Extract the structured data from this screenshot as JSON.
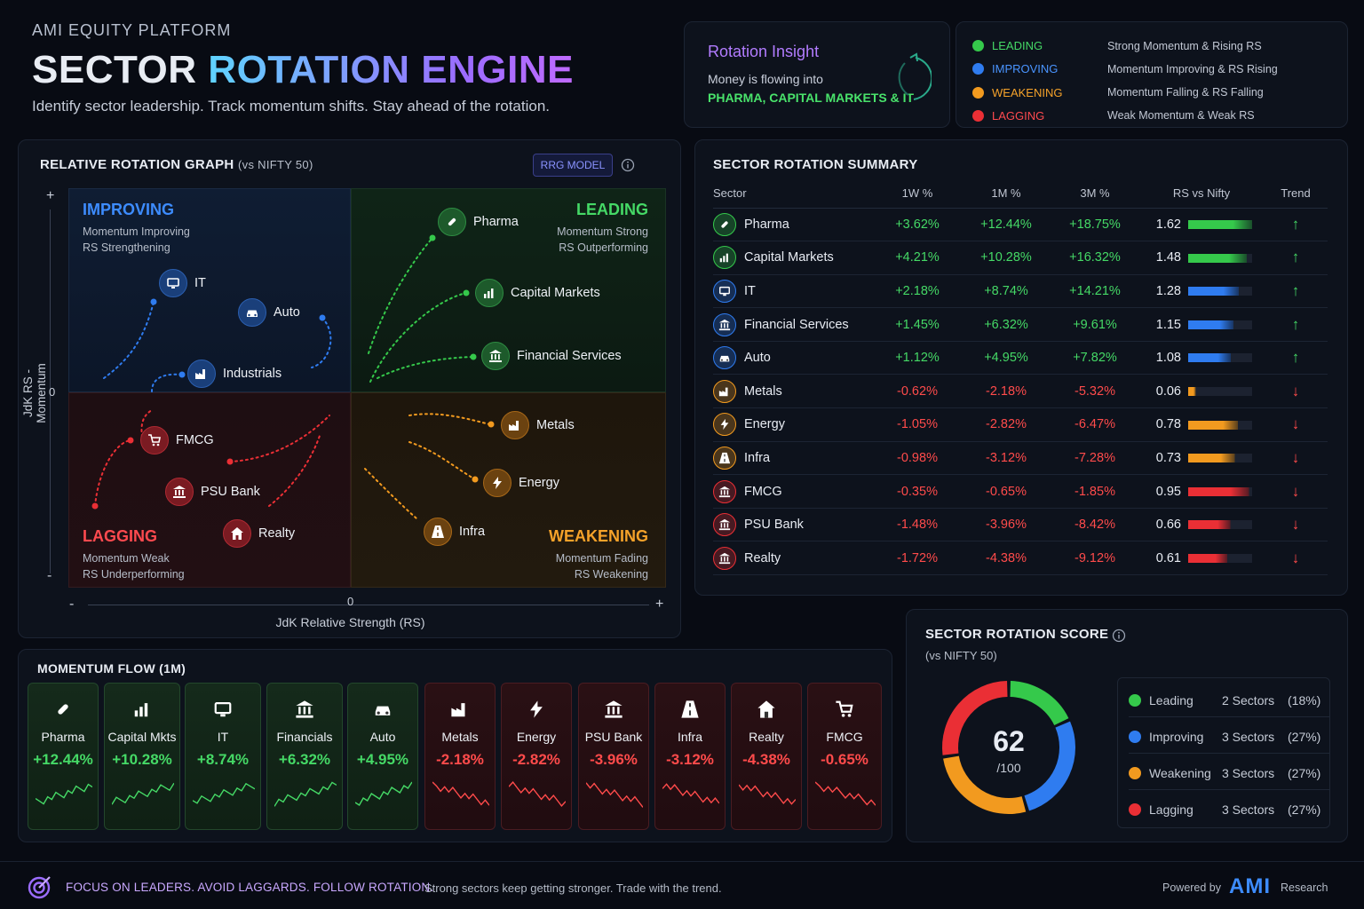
{
  "header": {
    "brand": "AMI EQUITY PLATFORM",
    "title_a": "SECTOR",
    "title_b": "ROTATION ENGINE",
    "subtitle": "Identify sector leadership. Track momentum shifts. Stay ahead of the rotation."
  },
  "insight": {
    "title": "Rotation Insight",
    "line1": "Money is flowing into",
    "line2": "PHARMA, CAPITAL MARKETS & IT"
  },
  "legend": [
    {
      "label": "LEADING",
      "desc": "Strong Momentum & Rising RS",
      "color": "#35c94b"
    },
    {
      "label": "IMPROVING",
      "desc": "Momentum Improving & RS Rising",
      "color": "#2f7cf0"
    },
    {
      "label": "WEAKENING",
      "desc": "Momentum Falling & RS Falling",
      "color": "#f29a1f"
    },
    {
      "label": "LAGGING",
      "desc": "Weak Momentum & Weak RS",
      "color": "#ea2f35"
    }
  ],
  "rrg": {
    "title": "RELATIVE ROTATION GRAPH",
    "title_sub": "(vs NIFTY 50)",
    "model_btn": "RRG MODEL",
    "y_label": "JdK RS - Momentum",
    "x_label": "JdK Relative Strength (RS)",
    "plus": "+",
    "minus": "-",
    "zero": "0",
    "quadrants": {
      "improving": {
        "label": "IMPROVING",
        "d1": "Momentum Improving",
        "d2": "RS Strengthening"
      },
      "leading": {
        "label": "LEADING",
        "d1": "Momentum Strong",
        "d2": "RS Outperforming"
      },
      "lagging": {
        "label": "LAGGING",
        "d1": "Momentum Weak",
        "d2": "RS Underperforming"
      },
      "weakening": {
        "label": "WEAKENING",
        "d1": "Momentum Fading",
        "d2": "RS Weakening"
      }
    },
    "nodes": {
      "pharma": "Pharma",
      "capmkts": "Capital Markets",
      "finserv": "Financial Services",
      "it": "IT",
      "auto": "Auto",
      "industrials": "Industrials",
      "fmcg": "FMCG",
      "psubank": "PSU Bank",
      "realty": "Realty",
      "metals": "Metals",
      "energy": "Energy",
      "infra": "Infra"
    }
  },
  "summary": {
    "title": "SECTOR ROTATION SUMMARY",
    "columns": [
      "Sector",
      "1W %",
      "1M %",
      "3M %",
      "RS vs Nifty",
      "Trend"
    ],
    "rows": [
      {
        "sector": "Pharma",
        "w1": "+3.62%",
        "m1": "+12.44%",
        "m3": "+18.75%",
        "rs": "1.62",
        "trend": "up",
        "color": "#35c94b",
        "icon": "pill-icon"
      },
      {
        "sector": "Capital Markets",
        "w1": "+4.21%",
        "m1": "+10.28%",
        "m3": "+16.32%",
        "rs": "1.48",
        "trend": "up",
        "color": "#35c94b",
        "icon": "chart-icon"
      },
      {
        "sector": "IT",
        "w1": "+2.18%",
        "m1": "+8.74%",
        "m3": "+14.21%",
        "rs": "1.28",
        "trend": "up",
        "color": "#2f7cf0",
        "icon": "monitor-icon"
      },
      {
        "sector": "Financial Services",
        "w1": "+1.45%",
        "m1": "+6.32%",
        "m3": "+9.61%",
        "rs": "1.15",
        "trend": "up",
        "color": "#2f7cf0",
        "icon": "bank-icon"
      },
      {
        "sector": "Auto",
        "w1": "+1.12%",
        "m1": "+4.95%",
        "m3": "+7.82%",
        "rs": "1.08",
        "trend": "up",
        "color": "#2f7cf0",
        "icon": "car-icon"
      },
      {
        "sector": "Metals",
        "w1": "-0.62%",
        "m1": "-2.18%",
        "m3": "-5.32%",
        "rs": "0.06",
        "trend": "down",
        "color": "#f29a1f",
        "icon": "factory-icon"
      },
      {
        "sector": "Energy",
        "w1": "-1.05%",
        "m1": "-2.82%",
        "m3": "-6.47%",
        "rs": "0.78",
        "trend": "down",
        "color": "#f29a1f",
        "icon": "bolt-icon"
      },
      {
        "sector": "Infra",
        "w1": "-0.98%",
        "m1": "-3.12%",
        "m3": "-7.28%",
        "rs": "0.73",
        "trend": "down",
        "color": "#f29a1f",
        "icon": "road-icon"
      },
      {
        "sector": "FMCG",
        "w1": "-0.35%",
        "m1": "-0.65%",
        "m3": "-1.85%",
        "rs": "0.95",
        "trend": "down",
        "color": "#ea2f35",
        "icon": "bank-icon"
      },
      {
        "sector": "PSU Bank",
        "w1": "-1.48%",
        "m1": "-3.96%",
        "m3": "-8.42%",
        "rs": "0.66",
        "trend": "down",
        "color": "#ea2f35",
        "icon": "bank-icon"
      },
      {
        "sector": "Realty",
        "w1": "-1.72%",
        "m1": "-4.38%",
        "m3": "-9.12%",
        "rs": "0.61",
        "trend": "down",
        "color": "#ea2f35",
        "icon": "bank-icon"
      }
    ]
  },
  "momentum": {
    "title": "MOMENTUM FLOW (1M)",
    "cards": [
      {
        "name": "Pharma",
        "value": "+12.44%",
        "dir": "up",
        "icon": "pill-icon"
      },
      {
        "name": "Capital Mkts",
        "value": "+10.28%",
        "dir": "up",
        "icon": "chart-icon"
      },
      {
        "name": "IT",
        "value": "+8.74%",
        "dir": "up",
        "icon": "monitor-icon"
      },
      {
        "name": "Financials",
        "value": "+6.32%",
        "dir": "up",
        "icon": "bank-icon"
      },
      {
        "name": "Auto",
        "value": "+4.95%",
        "dir": "up",
        "icon": "car-icon"
      },
      {
        "name": "Metals",
        "value": "-2.18%",
        "dir": "down",
        "icon": "factory-icon"
      },
      {
        "name": "Energy",
        "value": "-2.82%",
        "dir": "down",
        "icon": "bolt-icon"
      },
      {
        "name": "PSU Bank",
        "value": "-3.96%",
        "dir": "down",
        "icon": "bank-icon"
      },
      {
        "name": "Infra",
        "value": "-3.12%",
        "dir": "down",
        "icon": "road-icon"
      },
      {
        "name": "Realty",
        "value": "-4.38%",
        "dir": "down",
        "icon": "house-icon"
      },
      {
        "name": "FMCG",
        "value": "-0.65%",
        "dir": "down",
        "icon": "cart-icon"
      }
    ]
  },
  "score": {
    "title": "SECTOR ROTATION SCORE",
    "subtitle": "(vs NIFTY 50)",
    "value": "62",
    "max": "/100",
    "rows": [
      {
        "label": "Leading",
        "count": "2 Sectors",
        "pct": "(18%)",
        "color": "#35c94b",
        "share": 0.18
      },
      {
        "label": "Improving",
        "count": "3 Sectors",
        "pct": "(27%)",
        "color": "#2f7cf0",
        "share": 0.27
      },
      {
        "label": "Weakening",
        "count": "3 Sectors",
        "pct": "(27%)",
        "color": "#f29a1f",
        "share": 0.27
      },
      {
        "label": "Lagging",
        "count": "3 Sectors",
        "pct": "(27%)",
        "color": "#ea2f35",
        "share": 0.27
      }
    ]
  },
  "footer": {
    "tagline": "FOCUS ON LEADERS. AVOID LAGGARDS. FOLLOW ROTATION.",
    "note": "Strong sectors keep getting stronger. Trade with the trend.",
    "powered": "Powered by",
    "logo": "AMI",
    "research": "Research"
  }
}
